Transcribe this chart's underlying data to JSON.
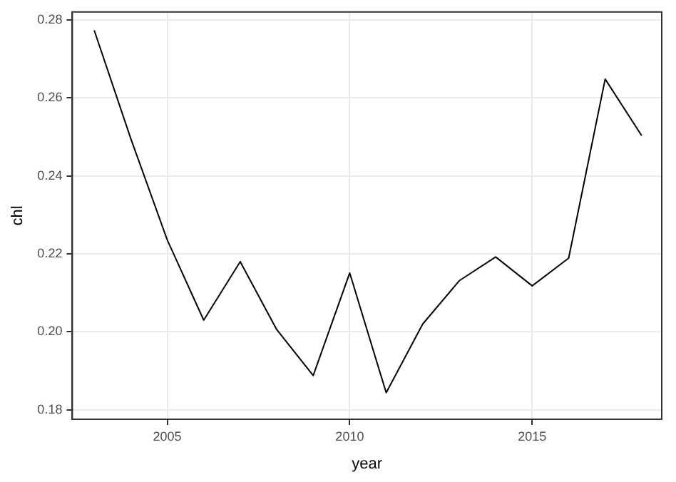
{
  "chart_data": {
    "type": "line",
    "xlabel": "year",
    "ylabel": "chl",
    "x": [
      2003,
      2004,
      2005,
      2006,
      2007,
      2008,
      2009,
      2010,
      2011,
      2012,
      2013,
      2014,
      2015,
      2016,
      2017,
      2018
    ],
    "series": [
      {
        "color": "#000000",
        "values": [
          0.2773,
          0.2496,
          0.2236,
          0.203,
          0.218,
          0.2006,
          0.1888,
          0.2151,
          0.1844,
          0.202,
          0.2131,
          0.2192,
          0.2118,
          0.2189,
          0.2648,
          0.2503
        ]
      }
    ],
    "xlim": [
      2002.4,
      2018.55
    ],
    "xticks": [
      2005,
      2010,
      2015
    ],
    "ylim": [
      0.1776,
      0.282
    ],
    "yticks": [
      {
        "value": 0.18,
        "label": "0.18"
      },
      {
        "value": 0.2,
        "label": "0.20"
      },
      {
        "value": 0.22,
        "label": "0.22"
      },
      {
        "value": 0.24,
        "label": "0.24"
      },
      {
        "value": 0.26,
        "label": "0.26"
      },
      {
        "value": 0.28,
        "label": "0.28"
      }
    ],
    "grid": true,
    "legend": false,
    "marker": "none",
    "line_style": "solid"
  }
}
